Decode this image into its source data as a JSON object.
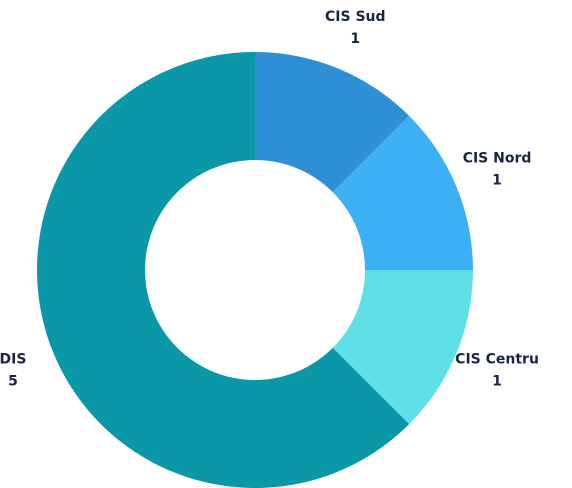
{
  "chart_data": {
    "type": "donut",
    "categories": [
      "CIS Sud",
      "CIS Nord",
      "CIS Centru",
      "DIS"
    ],
    "values": [
      1,
      1,
      1,
      5
    ],
    "colors": [
      "#2e8fd6",
      "#3db0f5",
      "#5fe0e6",
      "#0a98a9"
    ]
  }
}
